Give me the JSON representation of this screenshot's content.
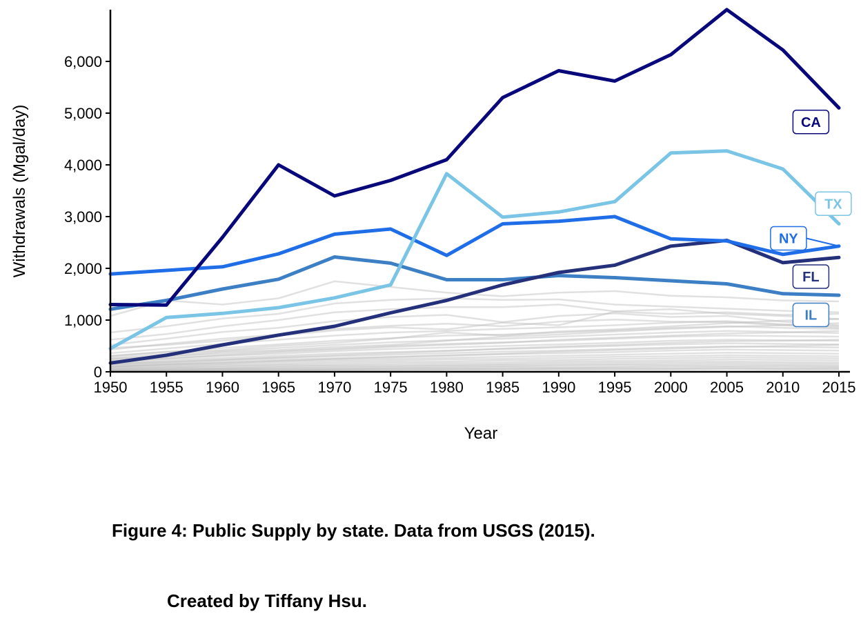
{
  "chart_data": {
    "type": "line",
    "xlabel": "Year",
    "ylabel": "Withdrawals (Mgal/day)",
    "x": [
      1950,
      1955,
      1960,
      1965,
      1970,
      1975,
      1980,
      1985,
      1990,
      1995,
      2000,
      2005,
      2010,
      2015
    ],
    "xlim": [
      1950,
      2015
    ],
    "ylim": [
      0,
      7000
    ],
    "x_ticks": [
      "1950",
      "1955",
      "1960",
      "1965",
      "1970",
      "1975",
      "1980",
      "1985",
      "1990",
      "1995",
      "2000",
      "2005",
      "2010",
      "2015"
    ],
    "y_ticks": [
      0,
      1000,
      2000,
      3000,
      4000,
      5000,
      6000
    ],
    "y_tick_labels": [
      "0",
      "1,000",
      "2,000",
      "3,000",
      "4,000",
      "5,000",
      "6,000"
    ],
    "grid": false,
    "legend": "direct labels at right end of lines",
    "highlighted_series": [
      {
        "name": "CA",
        "color": "#08087a",
        "values": [
          1300,
          1290,
          2600,
          4000,
          3400,
          3700,
          4100,
          5300,
          5820,
          5620,
          6130,
          7000,
          6220,
          5100
        ]
      },
      {
        "name": "TX",
        "color": "#7ac4e6",
        "values": [
          450,
          1050,
          1130,
          1240,
          1430,
          1680,
          3830,
          2990,
          3090,
          3290,
          4230,
          4270,
          3920,
          2860
        ]
      },
      {
        "name": "NY",
        "color": "#1f6ee8",
        "values": [
          1890,
          1960,
          2030,
          2280,
          2660,
          2760,
          2250,
          2860,
          2910,
          3000,
          2570,
          2530,
          2270,
          2430
        ]
      },
      {
        "name": "FL",
        "color": "#24307a",
        "values": [
          170,
          320,
          520,
          710,
          880,
          1140,
          1380,
          1680,
          1920,
          2060,
          2430,
          2540,
          2110,
          2210
        ]
      },
      {
        "name": "IL",
        "color": "#3d7fc4",
        "values": [
          1210,
          1380,
          1600,
          1790,
          2220,
          2100,
          1780,
          1780,
          1860,
          1820,
          1760,
          1700,
          1510,
          1480
        ]
      }
    ],
    "background_series_color": "#bdbdbd",
    "background_series": [
      [
        1080,
        1380,
        1300,
        1420,
        1750,
        1640,
        1530,
        1460,
        1530,
        1560,
        1470,
        1440,
        1380,
        1360
      ],
      [
        760,
        880,
        1030,
        1120,
        1320,
        1390,
        1420,
        1390,
        1400,
        1300,
        1260,
        1220,
        1180,
        1150
      ],
      [
        620,
        730,
        880,
        1000,
        1150,
        1210,
        1250,
        1250,
        1300,
        1170,
        1210,
        1120,
        1080,
        1020
      ],
      [
        520,
        640,
        770,
        850,
        980,
        1060,
        1100,
        960,
        1080,
        1130,
        1060,
        1080,
        970,
        900
      ],
      [
        430,
        540,
        640,
        720,
        830,
        890,
        930,
        880,
        970,
        1010,
        970,
        960,
        900,
        850
      ],
      [
        360,
        450,
        540,
        620,
        700,
        760,
        790,
        830,
        860,
        900,
        950,
        980,
        920,
        880
      ],
      [
        310,
        390,
        460,
        530,
        600,
        650,
        700,
        720,
        760,
        800,
        850,
        880,
        850,
        830
      ],
      [
        270,
        340,
        400,
        460,
        520,
        570,
        610,
        640,
        680,
        720,
        760,
        790,
        770,
        750
      ],
      [
        240,
        300,
        350,
        400,
        450,
        500,
        540,
        570,
        600,
        640,
        680,
        700,
        690,
        680
      ],
      [
        210,
        260,
        310,
        350,
        400,
        440,
        470,
        500,
        530,
        560,
        600,
        620,
        610,
        600
      ],
      [
        180,
        230,
        270,
        310,
        350,
        380,
        410,
        440,
        470,
        500,
        530,
        550,
        540,
        530
      ],
      [
        160,
        200,
        240,
        270,
        300,
        330,
        360,
        390,
        410,
        440,
        470,
        490,
        480,
        470
      ],
      [
        140,
        170,
        210,
        240,
        260,
        290,
        310,
        340,
        360,
        380,
        410,
        430,
        420,
        410
      ],
      [
        120,
        150,
        180,
        210,
        230,
        250,
        270,
        290,
        310,
        330,
        350,
        370,
        360,
        350
      ],
      [
        100,
        130,
        150,
        180,
        200,
        220,
        240,
        250,
        270,
        290,
        300,
        320,
        310,
        300
      ],
      [
        90,
        110,
        130,
        150,
        170,
        190,
        200,
        220,
        230,
        250,
        260,
        280,
        270,
        260
      ],
      [
        70,
        90,
        110,
        130,
        140,
        160,
        170,
        180,
        200,
        210,
        220,
        240,
        230,
        220
      ],
      [
        60,
        80,
        90,
        110,
        120,
        130,
        140,
        150,
        170,
        180,
        190,
        200,
        190,
        180
      ],
      [
        50,
        60,
        70,
        90,
        100,
        110,
        120,
        130,
        140,
        150,
        160,
        170,
        160,
        150
      ],
      [
        40,
        50,
        60,
        70,
        80,
        90,
        100,
        110,
        120,
        130,
        130,
        140,
        130,
        120
      ],
      [
        30,
        40,
        50,
        60,
        60,
        70,
        80,
        90,
        90,
        100,
        110,
        110,
        110,
        100
      ],
      [
        20,
        30,
        40,
        40,
        50,
        60,
        60,
        70,
        70,
        80,
        80,
        90,
        80,
        80
      ],
      [
        15,
        20,
        30,
        30,
        40,
        40,
        50,
        50,
        60,
        60,
        60,
        70,
        60,
        60
      ],
      [
        10,
        15,
        20,
        25,
        30,
        30,
        35,
        40,
        40,
        45,
        45,
        50,
        45,
        45
      ],
      [
        460,
        520,
        600,
        700,
        800,
        860,
        820,
        950,
        900,
        1160,
        1120,
        1150,
        1100,
        1120
      ],
      [
        300,
        380,
        420,
        500,
        560,
        640,
        760,
        700,
        780,
        820,
        880,
        940,
        990,
        1020
      ],
      [
        250,
        300,
        380,
        420,
        480,
        520,
        600,
        680,
        720,
        780,
        830,
        870,
        900,
        940
      ],
      [
        200,
        260,
        320,
        380,
        430,
        480,
        520,
        560,
        620,
        660,
        700,
        740,
        760,
        790
      ],
      [
        150,
        190,
        230,
        280,
        320,
        360,
        400,
        450,
        490,
        520,
        560,
        590,
        600,
        620
      ],
      [
        100,
        140,
        170,
        210,
        250,
        280,
        320,
        350,
        390,
        420,
        450,
        480,
        500,
        520
      ]
    ],
    "labels": [
      {
        "series": "CA",
        "text": "CA",
        "year": 2012.5,
        "value": 4830
      },
      {
        "series": "TX",
        "text": "TX",
        "year": 2014.5,
        "value": 3250
      },
      {
        "series": "NY",
        "text": "NY",
        "year": 2010.5,
        "value": 2580
      },
      {
        "series": "FL",
        "text": "FL",
        "year": 2012.5,
        "value": 1840
      },
      {
        "series": "IL",
        "text": "IL",
        "year": 2012.5,
        "value": 1100
      }
    ]
  },
  "caption": {
    "line1": "Figure 4: Public Supply by state. Data from USGS (2015).",
    "line2": "Created by Tiffany Hsu."
  }
}
